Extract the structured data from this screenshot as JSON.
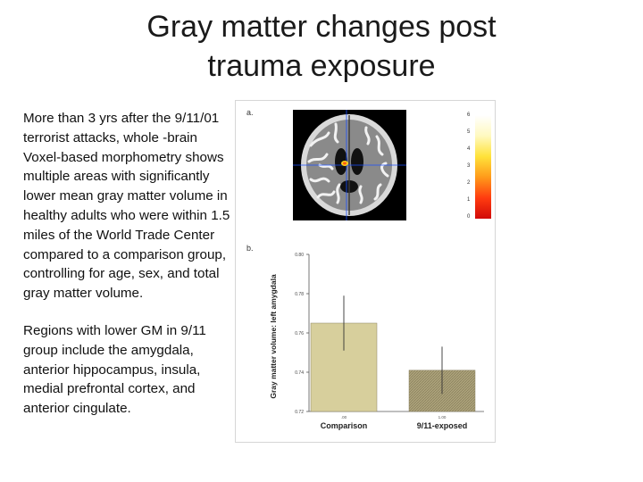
{
  "slide": {
    "title_line1": "Gray matter changes post",
    "title_line2": "trauma exposure",
    "paragraph1": "More than 3 yrs after the 9/11/01 terrorist attacks, whole -brain Voxel-based morphometry shows multiple areas with significantly lower mean gray matter volume in healthy adults who were within 1.5 miles of the World Trade Center compared to a comparison group, controlling for age, sex, and total gray matter volume.",
    "paragraph2": "Regions with lower GM in 9/11 group include the amygdala, anterior hippocampus, insula, medial prefrontal cortex, and anterior cingulate."
  },
  "figure": {
    "panel_a": "a.",
    "panel_b": "b.",
    "colorbar_ticks": [
      "6",
      "5",
      "4",
      "3",
      "2",
      "1",
      "0"
    ],
    "colorbar_colors": [
      "#ffffff",
      "#fff9c0",
      "#ffe23a",
      "#ff9a1a",
      "#ff3c10",
      "#d10a08"
    ]
  },
  "chart_data": {
    "type": "bar",
    "categories": [
      "Comparison",
      "9/11-exposed"
    ],
    "category_codes": [
      ".00",
      "1.00"
    ],
    "values": [
      0.765,
      0.741
    ],
    "error_low": [
      0.751,
      0.729
    ],
    "error_high": [
      0.779,
      0.753
    ],
    "ylabel": "Gray matter volume: left amygdala",
    "ylim": [
      0.72,
      0.8
    ],
    "yticks": [
      0.72,
      0.74,
      0.76,
      0.78,
      0.8
    ],
    "ytick_labels": [
      "0.72",
      "0.74",
      "0.76",
      "0.78",
      "0.80"
    ],
    "bar_colors": [
      "#d7cf9c",
      "#a99f78"
    ]
  }
}
